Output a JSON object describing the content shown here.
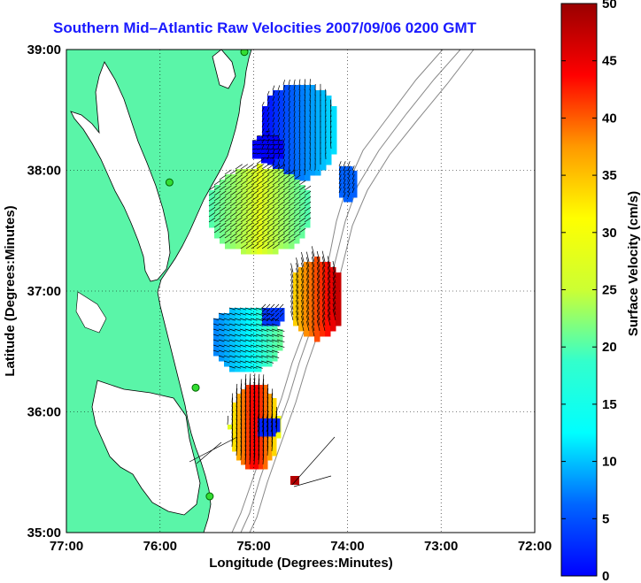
{
  "title": "Southern Mid–Atlantic Raw Velocities 2007/09/06 0200 GMT",
  "map": {
    "xlabel": "Longitude (Degrees:Minutes)",
    "ylabel": "Latitude (Degrees:Minutes)",
    "x_ticks": [
      "77:00",
      "76:00",
      "75:00",
      "74:00",
      "73:00",
      "72:00"
    ],
    "y_ticks": [
      "39:00",
      "38:00",
      "37:00",
      "36:00",
      "35:00"
    ],
    "land_color": "#5af5a8",
    "grid": "dotted"
  },
  "colorbar": {
    "label": "Surface Velocity (cm/s)",
    "ticks": [
      "0",
      "5",
      "10",
      "15",
      "20",
      "25",
      "30",
      "35",
      "40",
      "45",
      "50"
    ],
    "range": [
      0,
      50
    ],
    "colormap": "jet"
  },
  "stations": [
    {
      "name": "station",
      "lon": -75.1,
      "lat": 38.98
    },
    {
      "name": "station",
      "lon": -75.9,
      "lat": 37.9
    },
    {
      "name": "station",
      "lon": -75.62,
      "lat": 36.2
    },
    {
      "name": "station",
      "lon": -75.47,
      "lat": 35.3
    }
  ]
}
